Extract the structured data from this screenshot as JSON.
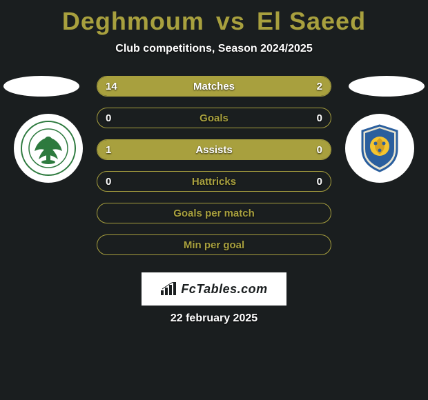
{
  "title": {
    "player1": "Deghmoum",
    "vs": "vs",
    "player2": "El Saeed",
    "color": "#a8a03e"
  },
  "subtitle": "Club competitions, Season 2024/2025",
  "accent_color": "#a8a03e",
  "background_color": "#1a1e1f",
  "text_color": "#ffffff",
  "player_oval_left_color": "#ffffff",
  "player_oval_right_color": "#ffffff",
  "club_left": {
    "name": "Al Masry",
    "primary_color": "#2d7a3e",
    "bg": "#ffffff"
  },
  "club_right": {
    "name": "Ismaily",
    "primary_color": "#2b5f9e",
    "secondary_color": "#f4c430",
    "bg": "#ffffff"
  },
  "stats": [
    {
      "label": "Matches",
      "left_val": "14",
      "right_val": "2",
      "left_pct": 87.5,
      "right_pct": 12.5,
      "show_vals": true
    },
    {
      "label": "Goals",
      "left_val": "0",
      "right_val": "0",
      "left_pct": 0,
      "right_pct": 0,
      "show_vals": true
    },
    {
      "label": "Assists",
      "left_val": "1",
      "right_val": "0",
      "left_pct": 100,
      "right_pct": 0,
      "show_vals": true
    },
    {
      "label": "Hattricks",
      "left_val": "0",
      "right_val": "0",
      "left_pct": 0,
      "right_pct": 0,
      "show_vals": true
    },
    {
      "label": "Goals per match",
      "left_val": "",
      "right_val": "",
      "left_pct": 0,
      "right_pct": 0,
      "show_vals": false
    },
    {
      "label": "Min per goal",
      "left_val": "",
      "right_val": "",
      "left_pct": 0,
      "right_pct": 0,
      "show_vals": false
    }
  ],
  "stat_bar_row_border": "#a8a03e",
  "stat_fill_color": "#a8a03e",
  "watermark": {
    "text": "FcTables.com",
    "bg": "#ffffff",
    "text_color": "#1a1e1f"
  },
  "date": "22 february 2025"
}
